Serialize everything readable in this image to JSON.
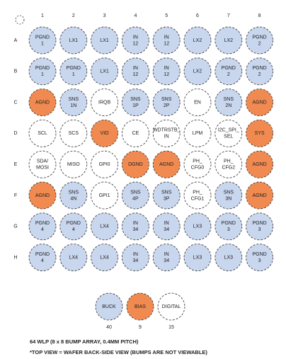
{
  "columns": [
    "1",
    "2",
    "3",
    "4",
    "5",
    "6",
    "7",
    "8"
  ],
  "rows": [
    {
      "label": "A",
      "cells": [
        {
          "lines": [
            "PGND",
            "1"
          ],
          "color": "#c8d6ee"
        },
        {
          "lines": [
            "LX1"
          ],
          "color": "#c8d6ee"
        },
        {
          "lines": [
            "LX1"
          ],
          "color": "#c8d6ee"
        },
        {
          "lines": [
            "IN",
            "12"
          ],
          "color": "#c8d6ee"
        },
        {
          "lines": [
            "IN",
            "12"
          ],
          "color": "#c8d6ee"
        },
        {
          "lines": [
            "LX2"
          ],
          "color": "#c8d6ee"
        },
        {
          "lines": [
            "LX2"
          ],
          "color": "#c8d6ee"
        },
        {
          "lines": [
            "PGND",
            "2"
          ],
          "color": "#c8d6ee"
        }
      ]
    },
    {
      "label": "B",
      "cells": [
        {
          "lines": [
            "PGND",
            "1"
          ],
          "color": "#c8d6ee"
        },
        {
          "lines": [
            "PGND",
            "1"
          ],
          "color": "#c8d6ee"
        },
        {
          "lines": [
            "LX1"
          ],
          "color": "#c8d6ee"
        },
        {
          "lines": [
            "IN",
            "12"
          ],
          "color": "#c8d6ee"
        },
        {
          "lines": [
            "IN",
            "12"
          ],
          "color": "#c8d6ee"
        },
        {
          "lines": [
            "LX2"
          ],
          "color": "#c8d6ee"
        },
        {
          "lines": [
            "PGND",
            "2"
          ],
          "color": "#c8d6ee"
        },
        {
          "lines": [
            "PGND",
            "2"
          ],
          "color": "#c8d6ee"
        }
      ]
    },
    {
      "label": "C",
      "cells": [
        {
          "lines": [
            "AGND"
          ],
          "color": "#f08a50"
        },
        {
          "lines": [
            "SNS",
            "1N"
          ],
          "color": "#c8d6ee"
        },
        {
          "lines": [
            "IRQB"
          ],
          "color": "#ffffff"
        },
        {
          "lines": [
            "SNS",
            "1P"
          ],
          "color": "#c8d6ee"
        },
        {
          "lines": [
            "SNS",
            "2P"
          ],
          "color": "#c8d6ee"
        },
        {
          "lines": [
            "EN"
          ],
          "color": "#ffffff"
        },
        {
          "lines": [
            "SNS",
            "2N"
          ],
          "color": "#c8d6ee"
        },
        {
          "lines": [
            "AGND"
          ],
          "color": "#f08a50"
        }
      ]
    },
    {
      "label": "D",
      "cells": [
        {
          "lines": [
            "SCL"
          ],
          "color": "#ffffff"
        },
        {
          "lines": [
            "SCS"
          ],
          "color": "#ffffff"
        },
        {
          "lines": [
            "VIO"
          ],
          "color": "#f08a50"
        },
        {
          "lines": [
            "CE"
          ],
          "color": "#ffffff"
        },
        {
          "lines": [
            "WDTRSTB_",
            "IN"
          ],
          "color": "#ffffff"
        },
        {
          "lines": [
            "LPM"
          ],
          "color": "#ffffff"
        },
        {
          "lines": [
            "I2C_SPI_",
            "SEL"
          ],
          "color": "#ffffff"
        },
        {
          "lines": [
            "SYS"
          ],
          "color": "#f08a50"
        }
      ]
    },
    {
      "label": "E",
      "cells": [
        {
          "lines": [
            "SDA/",
            "MOSI"
          ],
          "color": "#ffffff"
        },
        {
          "lines": [
            "MISO"
          ],
          "color": "#ffffff"
        },
        {
          "lines": [
            "GPI0"
          ],
          "color": "#ffffff"
        },
        {
          "lines": [
            "DGND"
          ],
          "color": "#f08a50"
        },
        {
          "lines": [
            "AGND"
          ],
          "color": "#f08a50"
        },
        {
          "lines": [
            "PH_",
            "CFG0"
          ],
          "color": "#ffffff"
        },
        {
          "lines": [
            "PH_",
            "CFG2"
          ],
          "color": "#ffffff"
        },
        {
          "lines": [
            "AGND"
          ],
          "color": "#f08a50"
        }
      ]
    },
    {
      "label": "F",
      "cells": [
        {
          "lines": [
            "AGND"
          ],
          "color": "#f08a50"
        },
        {
          "lines": [
            "SNS",
            "4N"
          ],
          "color": "#c8d6ee"
        },
        {
          "lines": [
            "GPI1"
          ],
          "color": "#ffffff"
        },
        {
          "lines": [
            "SNS",
            "4P"
          ],
          "color": "#c8d6ee"
        },
        {
          "lines": [
            "SNS",
            "3P"
          ],
          "color": "#c8d6ee"
        },
        {
          "lines": [
            "PH_",
            "CFG1"
          ],
          "color": "#ffffff"
        },
        {
          "lines": [
            "SNS",
            "3N"
          ],
          "color": "#c8d6ee"
        },
        {
          "lines": [
            "AGND"
          ],
          "color": "#f08a50"
        }
      ]
    },
    {
      "label": "G",
      "cells": [
        {
          "lines": [
            "PGND",
            "4"
          ],
          "color": "#c8d6ee"
        },
        {
          "lines": [
            "PGND",
            "4"
          ],
          "color": "#c8d6ee"
        },
        {
          "lines": [
            "LX4"
          ],
          "color": "#c8d6ee"
        },
        {
          "lines": [
            "IN",
            "34"
          ],
          "color": "#c8d6ee"
        },
        {
          "lines": [
            "IN",
            "34"
          ],
          "color": "#c8d6ee"
        },
        {
          "lines": [
            "LX3"
          ],
          "color": "#c8d6ee"
        },
        {
          "lines": [
            "PGND",
            "3"
          ],
          "color": "#c8d6ee"
        },
        {
          "lines": [
            "PGND",
            "3"
          ],
          "color": "#c8d6ee"
        }
      ]
    },
    {
      "label": "H",
      "cells": [
        {
          "lines": [
            "PGND",
            "4"
          ],
          "color": "#c8d6ee"
        },
        {
          "lines": [
            "LX4"
          ],
          "color": "#c8d6ee"
        },
        {
          "lines": [
            "LX4"
          ],
          "color": "#c8d6ee"
        },
        {
          "lines": [
            "IN",
            "34"
          ],
          "color": "#c8d6ee"
        },
        {
          "lines": [
            "IN",
            "34"
          ],
          "color": "#c8d6ee"
        },
        {
          "lines": [
            "LX3"
          ],
          "color": "#c8d6ee"
        },
        {
          "lines": [
            "LX3"
          ],
          "color": "#c8d6ee"
        },
        {
          "lines": [
            "PGND",
            "3"
          ],
          "color": "#c8d6ee"
        }
      ]
    }
  ],
  "legend": [
    {
      "label": "BUCK",
      "count": "40",
      "color": "#c8d6ee"
    },
    {
      "label": "BIAS",
      "count": "9",
      "color": "#f08a50"
    },
    {
      "label": "DIGITAL",
      "count": "15",
      "color": "#ffffff"
    }
  ],
  "captions": [
    "64 WLP (8 x 8 BUMP ARRAY, 0.4MM PITCH)",
    "*TOP VIEW = WAFER BACK-SIDE VIEW (BUMPS ARE NOT VIEWABLE)"
  ]
}
